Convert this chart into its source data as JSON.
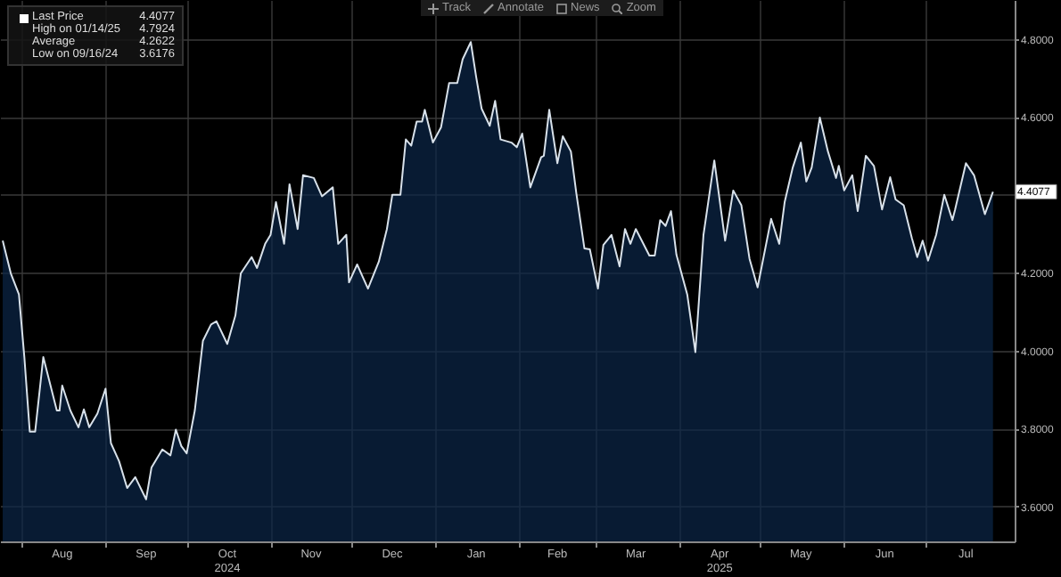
{
  "chart_data": {
    "type": "area",
    "annotations": [
      "Last Price 4.4077",
      "High on 01/14/25 4.7924",
      "Average 4.2622",
      "Low on 09/16/24 3.6176",
      "Track",
      "Annotate",
      "News",
      "Zoom",
      {
        "text": "4.4077",
        "y": 4.4077
      }
    ],
    "x": [
      "2024-07-25",
      "2024-07-28",
      "2024-07-31",
      "2024-08-02",
      "2024-08-04",
      "2024-08-06",
      "2024-08-09",
      "2024-08-14",
      "2024-08-15",
      "2024-08-16",
      "2024-08-19",
      "2024-08-22",
      "2024-08-24",
      "2024-08-26",
      "2024-08-29",
      "2024-09-01",
      "2024-09-03",
      "2024-09-06",
      "2024-09-09",
      "2024-09-12",
      "2024-09-16",
      "2024-09-18",
      "2024-09-22",
      "2024-09-25",
      "2024-09-27",
      "2024-09-29",
      "2024-10-01",
      "2024-10-04",
      "2024-10-07",
      "2024-10-10",
      "2024-10-12",
      "2024-10-16",
      "2024-10-19",
      "2024-10-21",
      "2024-10-25",
      "2024-10-27",
      "2024-10-30",
      "2024-11-01",
      "2024-11-03",
      "2024-11-06",
      "2024-11-08",
      "2024-11-11",
      "2024-11-13",
      "2024-11-17",
      "2024-11-20",
      "2024-11-24",
      "2024-11-26",
      "2024-11-29",
      "2024-11-30",
      "2024-12-03",
      "2024-12-05",
      "2024-12-07",
      "2024-12-11",
      "2024-12-14",
      "2024-12-16",
      "2024-12-19",
      "2024-12-21",
      "2024-12-23",
      "2024-12-25",
      "2024-12-27",
      "2024-12-28",
      "2024-12-31",
      "2025-01-03",
      "2025-01-06",
      "2025-01-09",
      "2025-01-11",
      "2025-01-14",
      "2025-01-16",
      "2025-01-18",
      "2025-01-21",
      "2025-01-23",
      "2025-01-25",
      "2025-01-29",
      "2025-01-31",
      "2025-02-02",
      "2025-02-05",
      "2025-02-09",
      "2025-02-10",
      "2025-02-12",
      "2025-02-15",
      "2025-02-17",
      "2025-02-20",
      "2025-02-22",
      "2025-02-25",
      "2025-02-27",
      "2025-03-02",
      "2025-03-04",
      "2025-03-07",
      "2025-03-10",
      "2025-03-12",
      "2025-03-14",
      "2025-03-16",
      "2025-03-21",
      "2025-03-23",
      "2025-03-25",
      "2025-03-27",
      "2025-03-29",
      "2025-03-31",
      "2025-04-04",
      "2025-04-07",
      "2025-04-10",
      "2025-04-14",
      "2025-04-18",
      "2025-04-21",
      "2025-04-24",
      "2025-04-27",
      "2025-04-30",
      "2025-05-05",
      "2025-05-08",
      "2025-05-10",
      "2025-05-13",
      "2025-05-16",
      "2025-05-18",
      "2025-05-20",
      "2025-05-23",
      "2025-05-26",
      "2025-05-29",
      "2025-05-30",
      "2025-06-01",
      "2025-06-04",
      "2025-06-06",
      "2025-06-09",
      "2025-06-12",
      "2025-06-15",
      "2025-06-18",
      "2025-06-20",
      "2025-06-23",
      "2025-06-26",
      "2025-06-28",
      "2025-06-30",
      "2025-07-02",
      "2025-07-05",
      "2025-07-08",
      "2025-07-11",
      "2025-07-12",
      "2025-07-16",
      "2025-07-19",
      "2025-07-23",
      "2025-07-26"
    ],
    "series": [
      {
        "color": "#0c2748",
        "values": [
          4.282,
          4.198,
          4.144,
          3.983,
          3.792,
          3.792,
          3.983,
          3.846,
          3.846,
          3.91,
          3.846,
          3.803,
          3.849,
          3.803,
          3.838,
          3.902,
          3.762,
          3.716,
          3.647,
          3.675,
          3.618,
          3.7,
          3.746,
          3.731,
          3.797,
          3.755,
          3.736,
          3.846,
          4.025,
          4.067,
          4.075,
          4.017,
          4.09,
          4.198,
          4.24,
          4.212,
          4.274,
          4.297,
          4.381,
          4.274,
          4.427,
          4.312,
          4.45,
          4.443,
          4.396,
          4.419,
          4.274,
          4.297,
          4.175,
          4.221,
          4.19,
          4.159,
          4.228,
          4.312,
          4.4,
          4.4,
          4.542,
          4.526,
          4.588,
          4.588,
          4.618,
          4.534,
          4.573,
          4.687,
          4.687,
          4.748,
          4.792,
          4.702,
          4.621,
          4.577,
          4.641,
          4.542,
          4.534,
          4.522,
          4.557,
          4.419,
          4.496,
          4.5,
          4.618,
          4.481,
          4.55,
          4.511,
          4.404,
          4.262,
          4.26,
          4.159,
          4.271,
          4.297,
          4.216,
          4.312,
          4.274,
          4.312,
          4.244,
          4.244,
          4.335,
          4.32,
          4.358,
          4.246,
          4.144,
          3.996,
          4.297,
          4.488,
          4.282,
          4.411,
          4.373,
          4.236,
          4.162,
          4.338,
          4.274,
          4.381,
          4.47,
          4.534,
          4.434,
          4.47,
          4.598,
          4.511,
          4.443,
          4.474,
          4.411,
          4.45,
          4.358,
          4.5,
          4.474,
          4.362,
          4.445,
          4.388,
          4.373,
          4.289,
          4.24,
          4.282,
          4.231,
          4.297,
          4.4,
          4.335,
          4.362,
          4.481,
          4.45,
          4.35,
          4.4077
        ]
      }
    ],
    "xlim": [
      "2024-07-24",
      "2025-08-03"
    ],
    "xticks": [
      {
        "value": "2024-08-01",
        "label": null
      },
      {
        "value": "2024-08-16",
        "label": "Aug"
      },
      {
        "value": "2024-09-01",
        "label": null
      },
      {
        "value": "2024-09-16",
        "label": "Sep"
      },
      {
        "value": "2024-10-01",
        "label": null
      },
      {
        "value": "2024-10-16",
        "label": "Oct\n2024"
      },
      {
        "value": "2024-11-01",
        "label": null
      },
      {
        "value": "2024-11-16",
        "label": "Nov"
      },
      {
        "value": "2024-12-01",
        "label": null
      },
      {
        "value": "2024-12-16",
        "label": "Dec"
      },
      {
        "value": "2025-01-01",
        "label": null
      },
      {
        "value": "2025-01-16",
        "label": "Jan"
      },
      {
        "value": "2025-02-01",
        "label": null
      },
      {
        "value": "2025-02-15",
        "label": "Feb"
      },
      {
        "value": "2025-03-01",
        "label": null
      },
      {
        "value": "2025-03-16",
        "label": "Mar"
      },
      {
        "value": "2025-04-01",
        "label": null
      },
      {
        "value": "2025-04-16",
        "label": "Apr\n2025"
      },
      {
        "value": "2025-05-01",
        "label": null
      },
      {
        "value": "2025-05-16",
        "label": "May"
      },
      {
        "value": "2025-06-01",
        "label": null
      },
      {
        "value": "2025-06-16",
        "label": "Jun"
      },
      {
        "value": "2025-07-01",
        "label": null
      },
      {
        "value": "2025-07-16",
        "label": "Jul"
      }
    ],
    "ylim": [
      3.51,
      4.9
    ],
    "yticks": [
      {
        "value": 3.6,
        "label": "3.6000"
      },
      {
        "value": 3.8,
        "label": "3.8000"
      },
      {
        "value": 4.0,
        "label": "4.0000"
      },
      {
        "value": 4.2,
        "label": "4.2000"
      },
      {
        "value": 4.4,
        "label": null
      },
      {
        "value": 4.6,
        "label": "4.6000"
      },
      {
        "value": 4.8,
        "label": "4.8000"
      }
    ],
    "grid": true
  }
}
